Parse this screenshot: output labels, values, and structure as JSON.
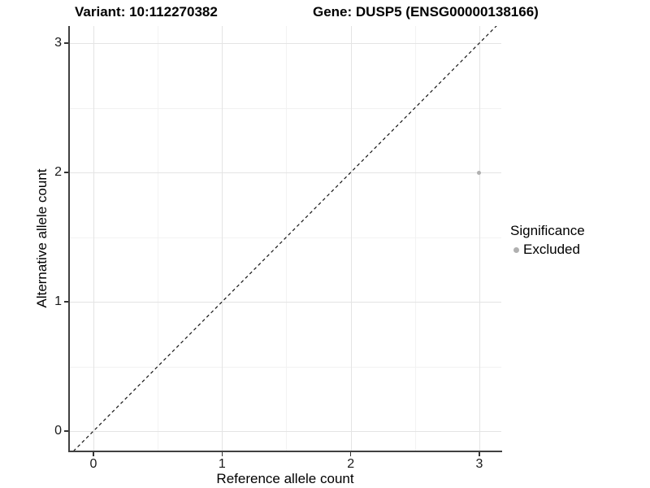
{
  "titles": {
    "variant": "Variant: 10:112270382",
    "gene": "Gene: DUSP5 (ENSG00000138166)"
  },
  "chart_data": {
    "type": "scatter",
    "title_left": "Variant: 10:112270382",
    "title_right": "Gene: DUSP5 (ENSG00000138166)",
    "xlabel": "Reference allele count",
    "ylabel": "Alternative allele count",
    "xlim": [
      -0.19,
      3.17
    ],
    "ylim": [
      -0.16,
      3.13
    ],
    "x_ticks": [
      0,
      1,
      2,
      3
    ],
    "y_ticks": [
      0,
      1,
      2,
      3
    ],
    "x_minor_ticks": [
      0.5,
      1.5,
      2.5
    ],
    "y_minor_ticks": [
      0.5,
      1.5,
      2.5
    ],
    "grid": true,
    "reference_line": {
      "type": "identity",
      "slope": 1,
      "intercept": 0,
      "style": "dashed",
      "color": "#141414"
    },
    "series": [
      {
        "name": "Excluded",
        "color": "#b0b0b0",
        "points": [
          {
            "x": 3,
            "y": 2
          }
        ]
      }
    ],
    "legend": {
      "title": "Significance",
      "position": "right",
      "entries": [
        {
          "label": "Excluded",
          "color": "#b0b0b0"
        }
      ]
    }
  }
}
